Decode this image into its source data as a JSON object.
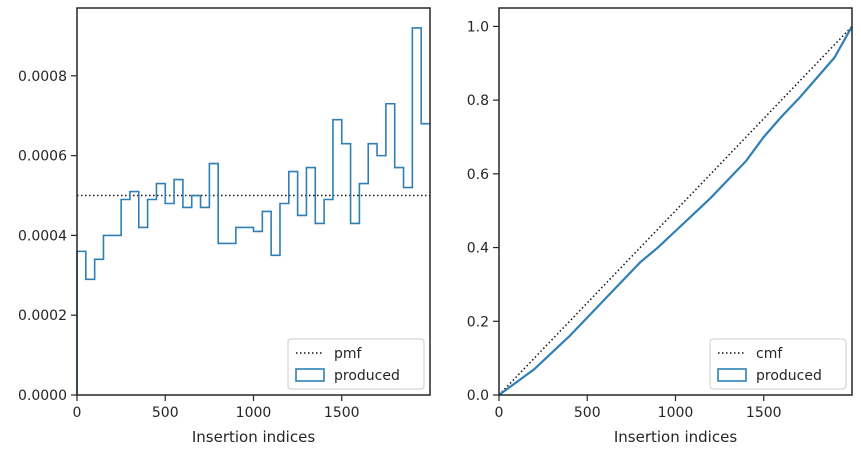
{
  "chart_data": [
    {
      "type": "step",
      "xlabel": "Insertion indices",
      "ylabel": "",
      "xlim": [
        0,
        2000
      ],
      "ylim": [
        0,
        0.00097
      ],
      "xticks": [
        0,
        500,
        1000,
        1500
      ],
      "yticks": [
        0.0,
        0.0002,
        0.0004,
        0.0006,
        0.0008
      ],
      "ytick_labels": [
        "0.0000",
        "0.0002",
        "0.0004",
        "0.0006",
        "0.0008"
      ],
      "legend": {
        "position": "lower right",
        "entries": [
          "pmf",
          "produced"
        ]
      },
      "series": [
        {
          "name": "pmf",
          "style": "dotted",
          "color": "#111111",
          "x": [
            0,
            2000
          ],
          "y": [
            0.0005,
            0.0005
          ]
        },
        {
          "name": "produced",
          "style": "histogram-step",
          "color": "#2f7fb5",
          "bin_width": 50,
          "bin_starts": [
            0,
            50,
            100,
            150,
            200,
            250,
            300,
            350,
            400,
            450,
            500,
            550,
            600,
            650,
            700,
            750,
            800,
            850,
            900,
            950,
            1000,
            1050,
            1100,
            1150,
            1200,
            1250,
            1300,
            1350,
            1400,
            1450,
            1500,
            1550,
            1600,
            1650,
            1700,
            1750,
            1800,
            1850,
            1900,
            1950
          ],
          "values": [
            0.00036,
            0.00029,
            0.00034,
            0.0004,
            0.0004,
            0.00049,
            0.00051,
            0.00042,
            0.00049,
            0.00053,
            0.00048,
            0.00054,
            0.00047,
            0.0005,
            0.00047,
            0.00058,
            0.00038,
            0.00038,
            0.00042,
            0.00042,
            0.00041,
            0.00046,
            0.00035,
            0.00048,
            0.00056,
            0.00045,
            0.00057,
            0.00043,
            0.00049,
            0.00069,
            0.00063,
            0.00043,
            0.00053,
            0.00063,
            0.0006,
            0.00073,
            0.00057,
            0.00052,
            0.00092,
            0.00068
          ]
        }
      ]
    },
    {
      "type": "line",
      "xlabel": "Insertion indices",
      "ylabel": "",
      "xlim": [
        0,
        2000
      ],
      "ylim": [
        0,
        1.05
      ],
      "xticks": [
        0,
        500,
        1000,
        1500
      ],
      "yticks": [
        0.0,
        0.2,
        0.4,
        0.6,
        0.8,
        1.0
      ],
      "ytick_labels": [
        "0.0",
        "0.2",
        "0.4",
        "0.6",
        "0.8",
        "1.0"
      ],
      "legend": {
        "position": "lower right",
        "entries": [
          "cmf",
          "produced"
        ]
      },
      "series": [
        {
          "name": "cmf",
          "style": "dotted",
          "color": "#111111",
          "x": [
            0,
            2000
          ],
          "y": [
            0,
            1.0
          ]
        },
        {
          "name": "produced",
          "style": "solid",
          "color": "#2f7fb5",
          "x": [
            0,
            100,
            200,
            300,
            400,
            500,
            600,
            700,
            800,
            900,
            1000,
            1100,
            1200,
            1300,
            1400,
            1500,
            1600,
            1700,
            1800,
            1900,
            2000
          ],
          "y": [
            0,
            0.035,
            0.07,
            0.115,
            0.16,
            0.21,
            0.26,
            0.31,
            0.36,
            0.4,
            0.445,
            0.49,
            0.535,
            0.585,
            0.635,
            0.7,
            0.755,
            0.805,
            0.86,
            0.915,
            1.0
          ]
        }
      ]
    }
  ]
}
